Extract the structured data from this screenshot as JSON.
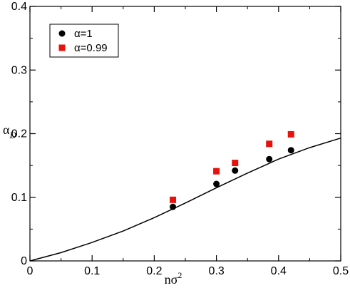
{
  "chart_data": {
    "type": "scatter",
    "xlabel": "nσ²",
    "ylabel": "α_D",
    "xlim": [
      0,
      0.5
    ],
    "ylim": [
      0,
      0.4
    ],
    "xticks": [
      "0",
      "0.1",
      "0.2",
      "0.3",
      "0.4",
      "0.5"
    ],
    "yticks": [
      "0",
      "0.1",
      "0.2",
      "0.3",
      "0.4"
    ],
    "grid": false,
    "legend_placement": "top-left",
    "series": [
      {
        "name": "α=1",
        "marker": "circle",
        "color": "#000000",
        "points": [
          [
            0.23,
            0.085
          ],
          [
            0.3,
            0.121
          ],
          [
            0.33,
            0.142
          ],
          [
            0.385,
            0.16
          ],
          [
            0.42,
            0.174
          ]
        ]
      },
      {
        "name": "α=0.99",
        "marker": "square",
        "color": "#e8120c",
        "points": [
          [
            0.23,
            0.096
          ],
          [
            0.3,
            0.141
          ],
          [
            0.33,
            0.154
          ],
          [
            0.385,
            0.184
          ],
          [
            0.42,
            0.199
          ]
        ]
      },
      {
        "marker": "line",
        "color": "#000000",
        "points": [
          [
            0.0,
            0.0
          ],
          [
            0.05,
            0.013
          ],
          [
            0.1,
            0.029
          ],
          [
            0.15,
            0.047
          ],
          [
            0.2,
            0.068
          ],
          [
            0.25,
            0.091
          ],
          [
            0.3,
            0.115
          ],
          [
            0.35,
            0.138
          ],
          [
            0.4,
            0.16
          ],
          [
            0.45,
            0.178
          ],
          [
            0.5,
            0.193
          ]
        ]
      }
    ]
  }
}
